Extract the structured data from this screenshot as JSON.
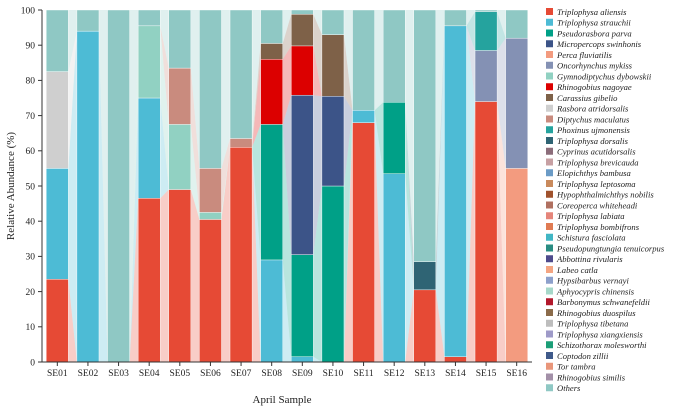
{
  "chart_data": {
    "type": "bar",
    "stacked": true,
    "title": "",
    "xlabel": "April Sample",
    "ylabel": "Relative Abundance (%)",
    "ylim": [
      0,
      100
    ],
    "yticks": [
      0,
      10,
      20,
      30,
      40,
      50,
      60,
      70,
      80,
      90,
      100
    ],
    "grid": false,
    "legend_position": "right",
    "categories": [
      "SE01",
      "SE02",
      "SE03",
      "SE04",
      "SE05",
      "SE06",
      "SE07",
      "SE08",
      "SE09",
      "SE10",
      "SE11",
      "SE12",
      "SE13",
      "SE14",
      "SE15",
      "SE16"
    ],
    "series": [
      {
        "name": "Triplophysa aliensis",
        "color": "#e64a35",
        "values": [
          23.5,
          0,
          0,
          46.5,
          49,
          40.5,
          61,
          0,
          0,
          0,
          68,
          0,
          20.5,
          1.5,
          74,
          0
        ]
      },
      {
        "name": "Triplophysa strauchii",
        "color": "#4dbbd5",
        "values": [
          31.5,
          94,
          0,
          28.5,
          0,
          0,
          0,
          29,
          1.5,
          0,
          3.5,
          53.5,
          0,
          94,
          0,
          0
        ]
      },
      {
        "name": "Pseudorasbora parva",
        "color": "#00a087",
        "values": [
          0,
          0,
          0,
          0,
          0,
          0,
          0,
          38.5,
          29,
          50,
          0,
          20.3,
          0,
          0,
          0,
          0
        ]
      },
      {
        "name": "Micropercops swinhonis",
        "color": "#3c5488",
        "values": [
          0,
          0,
          0,
          0,
          0,
          0,
          0,
          0,
          45.3,
          25.5,
          0,
          0,
          0,
          0,
          0,
          0
        ]
      },
      {
        "name": "Perca fluviatilis",
        "color": "#f39b7f",
        "values": [
          0,
          0,
          0,
          0,
          0,
          0,
          0,
          0,
          0,
          0,
          0,
          0,
          0,
          0,
          0,
          55
        ]
      },
      {
        "name": "Oncorhynchus mykiss",
        "color": "#8491b4",
        "values": [
          0,
          0,
          0,
          0,
          0,
          0,
          0,
          0,
          0,
          0,
          0,
          0,
          0,
          0,
          14.5,
          37
        ]
      },
      {
        "name": "Gymnodiptychus dybowskii",
        "color": "#91d1c2",
        "values": [
          0,
          0,
          0,
          20.5,
          18.5,
          2,
          0,
          0,
          0,
          0,
          0,
          0,
          0,
          0,
          0,
          0
        ]
      },
      {
        "name": "Rhinogobius nagoyae",
        "color": "#dc0000",
        "values": [
          0,
          0,
          0,
          0,
          0,
          0,
          0,
          18.5,
          14,
          0,
          0,
          0,
          0,
          0,
          0,
          0
        ]
      },
      {
        "name": "Carassius gibelio",
        "color": "#7e6148",
        "values": [
          0,
          0,
          0,
          0,
          0,
          0,
          0,
          4.5,
          9,
          17.5,
          0,
          0,
          0,
          0,
          0,
          0
        ]
      },
      {
        "name": "Rasbora atridorsalis",
        "color": "#cfcfcf",
        "values": [
          27.5,
          0,
          0,
          0,
          0,
          0,
          0,
          0,
          0,
          0,
          0,
          0,
          0,
          0,
          0,
          0
        ]
      },
      {
        "name": "Diptychus maculatus",
        "color": "#c98b7e",
        "values": [
          0,
          0,
          0,
          0,
          16,
          12.5,
          2.5,
          0,
          0,
          0,
          0,
          0,
          0,
          0,
          0,
          0
        ]
      },
      {
        "name": "Phoxinus ujmonensis",
        "color": "#25a39e",
        "values": [
          0,
          0,
          0,
          0,
          0,
          0,
          0,
          0,
          0,
          0,
          0,
          0,
          0,
          0,
          11,
          0
        ]
      },
      {
        "name": "Triplophysa dorsalis",
        "color": "#2f6474",
        "values": [
          0,
          0,
          0,
          0,
          0,
          0,
          0,
          0,
          0,
          0,
          0,
          0,
          8,
          0,
          0,
          0
        ]
      },
      {
        "name": "Cyprinus acutidorsalis",
        "color": "#8c6d7a",
        "values": [
          0,
          0,
          0,
          0,
          0,
          0,
          0,
          0,
          0,
          0,
          0,
          0,
          0,
          0,
          0,
          0
        ]
      },
      {
        "name": "Triplophysa brevicauda",
        "color": "#c7a0a3",
        "values": [
          0,
          0,
          0,
          0,
          0,
          0,
          0,
          0,
          0,
          0,
          0,
          0,
          0,
          0,
          0,
          0
        ]
      },
      {
        "name": "Elopichthys bambusa",
        "color": "#6b9bc6",
        "values": [
          0,
          0,
          0,
          0,
          0,
          0,
          0,
          0,
          0,
          0,
          0,
          0,
          0,
          0,
          0,
          0
        ]
      },
      {
        "name": "Triplophysa leptosoma",
        "color": "#c98a5c",
        "values": [
          0,
          0,
          0,
          0,
          0,
          0,
          0,
          0,
          0,
          0,
          0,
          0,
          0,
          0,
          0,
          0
        ]
      },
      {
        "name": "Hypophthalmichthys nobilis",
        "color": "#a0522d",
        "values": [
          0,
          0,
          0,
          0,
          0,
          0,
          0,
          0,
          0,
          0,
          0,
          0,
          0,
          0,
          0,
          0
        ]
      },
      {
        "name": "Coreoperca whiteheadi",
        "color": "#b07060",
        "values": [
          0,
          0,
          0,
          0,
          0,
          0,
          0,
          0,
          0,
          0,
          0,
          0,
          0,
          0,
          0,
          0
        ]
      },
      {
        "name": "Triplophysa labiata",
        "color": "#e5857a",
        "values": [
          0,
          0,
          0,
          0,
          0,
          0,
          0,
          0,
          0,
          0,
          0,
          0,
          0,
          0,
          0,
          0
        ]
      },
      {
        "name": "Triplophysa bombifrons",
        "color": "#e07b53",
        "values": [
          0,
          0,
          0,
          0,
          0,
          0,
          0,
          0,
          0,
          0,
          0,
          0,
          0,
          0,
          0,
          0
        ]
      },
      {
        "name": "Schistura fasciolata",
        "color": "#41b6c4",
        "values": [
          0,
          0,
          0,
          0,
          0,
          0,
          0,
          0,
          0,
          0,
          0,
          0,
          0,
          0,
          0,
          0
        ]
      },
      {
        "name": "Pseudopungtungia tenuicorpus",
        "color": "#2a8c82",
        "values": [
          0,
          0,
          0,
          0,
          0,
          0,
          0,
          0,
          0,
          0,
          0,
          0,
          0,
          0,
          0,
          0
        ]
      },
      {
        "name": "Abbottina rivularis",
        "color": "#4e4a8c",
        "values": [
          0,
          0,
          0,
          0,
          0,
          0,
          0,
          0,
          0,
          0,
          0,
          0,
          0,
          0,
          0,
          0
        ]
      },
      {
        "name": "Labeo catla",
        "color": "#f4a582",
        "values": [
          0,
          0,
          0,
          0,
          0,
          0,
          0,
          0,
          0,
          0,
          0,
          0,
          0,
          0,
          0,
          0
        ]
      },
      {
        "name": "Hypsibarbus vernayi",
        "color": "#8da0cb",
        "values": [
          0,
          0,
          0,
          0,
          0,
          0,
          0,
          0,
          0,
          0,
          0,
          0,
          0,
          0,
          0,
          0
        ]
      },
      {
        "name": "Aphyocypris chinensis",
        "color": "#a6d8c9",
        "values": [
          0,
          0,
          0,
          0,
          0,
          0,
          0,
          0,
          0,
          0,
          0,
          0,
          0,
          0,
          0,
          0
        ]
      },
      {
        "name": "Barbonymus schwanefeldii",
        "color": "#b2182b",
        "values": [
          0,
          0,
          0,
          0,
          0,
          0,
          0,
          0,
          0,
          0,
          0,
          0,
          0,
          0,
          0,
          0
        ]
      },
      {
        "name": "Rhinogobius duospilus",
        "color": "#8b6b4a",
        "values": [
          0,
          0,
          0,
          0,
          0,
          0,
          0,
          0,
          0,
          0,
          0,
          0,
          0,
          0,
          0,
          0
        ]
      },
      {
        "name": "Triplophysa tibetana",
        "color": "#bdbdbd",
        "values": [
          0,
          0,
          0,
          0,
          0,
          0,
          0,
          0,
          0,
          0,
          0,
          0,
          0,
          0,
          0,
          0
        ]
      },
      {
        "name": "Triplophysa xiangxiensis",
        "color": "#9e9ac8",
        "values": [
          0,
          0,
          0,
          0,
          0,
          0,
          0,
          0,
          0,
          0,
          0,
          0,
          0,
          0,
          0,
          0
        ]
      },
      {
        "name": "Schizothorax molesworthi",
        "color": "#1b9e77",
        "values": [
          0,
          0,
          0,
          0,
          0,
          0,
          0,
          0,
          0,
          0,
          0,
          0,
          0,
          0,
          0,
          0
        ]
      },
      {
        "name": "Coptodon zillii",
        "color": "#3f5a8a",
        "values": [
          0,
          0,
          0,
          0,
          0,
          0,
          0,
          0,
          0,
          0,
          0,
          0,
          0,
          0,
          0,
          0
        ]
      },
      {
        "name": "Tor tambra",
        "color": "#e9967a",
        "values": [
          0,
          0,
          0,
          0,
          0,
          0,
          0,
          0,
          0,
          0,
          0,
          0,
          0,
          0,
          0,
          0
        ]
      },
      {
        "name": "Rhinogobius similis",
        "color": "#a390a8",
        "values": [
          0,
          0,
          0,
          0,
          0,
          0,
          0,
          0,
          0,
          0,
          0,
          0,
          0,
          0,
          0,
          0
        ]
      },
      {
        "name": "Others",
        "color": "#8fc8c4",
        "values": [
          17.5,
          6,
          100,
          4.5,
          16.5,
          45,
          36.5,
          9.5,
          1.2,
          7,
          28.5,
          26.2,
          71.5,
          4.5,
          0.5,
          8
        ]
      }
    ]
  }
}
